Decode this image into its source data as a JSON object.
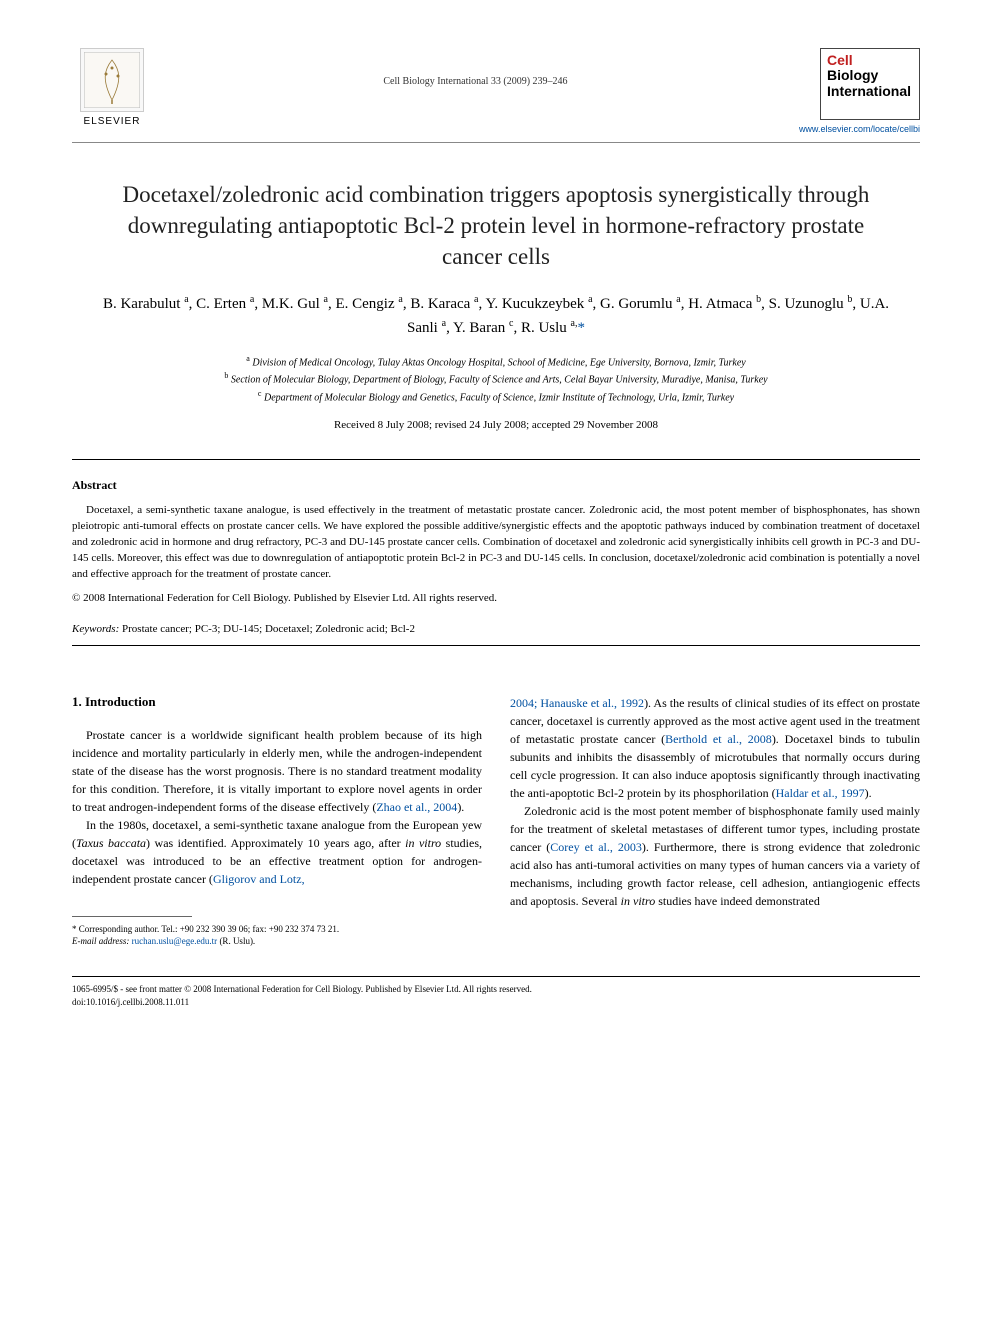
{
  "header": {
    "publisher_name": "ELSEVIER",
    "journal_ref": "Cell Biology International 33 (2009) 239–246",
    "journal_name_line1": "Cell",
    "journal_name_line2": "Biology",
    "journal_name_line3": "International",
    "journal_url": "www.elsevier.com/locate/cellbi"
  },
  "title": "Docetaxel/zoledronic acid combination triggers apoptosis synergistically through downregulating antiapoptotic Bcl-2 protein level in hormone-refractory prostate cancer cells",
  "authors_html": "B. Karabulut <sup>a</sup>, C. Erten <sup>a</sup>, M.K. Gul <sup>a</sup>, E. Cengiz <sup>a</sup>, B. Karaca <sup>a</sup>, Y. Kucukzeybek <sup>a</sup>, G. Gorumlu <sup>a</sup>, H. Atmaca <sup>b</sup>, S. Uzunoglu <sup>b</sup>, U.A. Sanli <sup>a</sup>, Y. Baran <sup>c</sup>, R. Uslu <sup>a,</sup><span class=\"star\">*</span>",
  "affiliations": [
    {
      "sup": "a",
      "text": "Division of Medical Oncology, Tulay Aktas Oncology Hospital, School of Medicine, Ege University, Bornova, Izmir, Turkey"
    },
    {
      "sup": "b",
      "text": "Section of Molecular Biology, Department of Biology, Faculty of Science and Arts, Celal Bayar University, Muradiye, Manisa, Turkey"
    },
    {
      "sup": "c",
      "text": "Department of Molecular Biology and Genetics, Faculty of Science, Izmir Institute of Technology, Urla, Izmir, Turkey"
    }
  ],
  "dates": "Received 8 July 2008; revised 24 July 2008; accepted 29 November 2008",
  "abstract": {
    "heading": "Abstract",
    "text": "Docetaxel, a semi-synthetic taxane analogue, is used effectively in the treatment of metastatic prostate cancer. Zoledronic acid, the most potent member of bisphosphonates, has shown pleiotropic anti-tumoral effects on prostate cancer cells. We have explored the possible additive/synergistic effects and the apoptotic pathways induced by combination treatment of docetaxel and zoledronic acid in hormone and drug refractory, PC-3 and DU-145 prostate cancer cells. Combination of docetaxel and zoledronic acid synergistically inhibits cell growth in PC-3 and DU-145 cells. Moreover, this effect was due to downregulation of antiapoptotic protein Bcl-2 in PC-3 and DU-145 cells. In conclusion, docetaxel/zoledronic acid combination is potentially a novel and effective approach for the treatment of prostate cancer.",
    "copyright": "© 2008 International Federation for Cell Biology. Published by Elsevier Ltd. All rights reserved."
  },
  "keywords": {
    "label": "Keywords:",
    "text": "Prostate cancer; PC-3; DU-145; Docetaxel; Zoledronic acid; Bcl-2"
  },
  "intro": {
    "heading": "1. Introduction",
    "p1": "Prostate cancer is a worldwide significant health problem because of its high incidence and mortality particularly in elderly men, while the androgen-independent state of the disease has the worst prognosis. There is no standard treatment modality for this condition. Therefore, it is vitally important to explore novel agents in order to treat androgen-independent forms of the disease effectively (",
    "p1_cite": "Zhao et al., 2004",
    "p1_tail": ").",
    "p2_a": "In the 1980s, docetaxel, a semi-synthetic taxane analogue from the European yew (",
    "p2_ital": "Taxus baccata",
    "p2_b": ") was identified. Approximately 10 years ago, after ",
    "p2_ital2": "in vitro",
    "p2_c": " studies, docetaxel was introduced to be an effective treatment option for androgen-independent prostate cancer (",
    "p2_cite1": "Gligorov and Lotz,",
    "col2_p1_cite": "2004; Hanauske et al., 1992",
    "col2_p1_a": "). As the results of clinical studies of its effect on prostate cancer, docetaxel is currently approved as the most active agent used in the treatment of metastatic prostate cancer (",
    "col2_p1_cite2": "Berthold et al., 2008",
    "col2_p1_b": "). Docetaxel binds to tubulin subunits and inhibits the disassembly of microtubules that normally occurs during cell cycle progression. It can also induce apoptosis significantly through inactivating the anti-apoptotic Bcl-2 protein by its phosphorilation (",
    "col2_p1_cite3": "Haldar et al., 1997",
    "col2_p1_c": ").",
    "col2_p2_a": "Zoledronic acid is the most potent member of bisphosphonate family used mainly for the treatment of skeletal metastases of different tumor types, including prostate cancer (",
    "col2_p2_cite": "Corey et al., 2003",
    "col2_p2_b": "). Furthermore, there is strong evidence that zoledronic acid also has anti-tumoral activities on many types of human cancers via a variety of mechanisms, including growth factor release, cell adhesion, antiangiogenic effects and apoptosis. Several ",
    "col2_p2_ital": "in vitro",
    "col2_p2_c": " studies have indeed demonstrated"
  },
  "footnote": {
    "corresponding": "* Corresponding author. Tel.: +90 232 390 39 06; fax: +90 232 374 73 21.",
    "email_label": "E-mail address:",
    "email": "ruchan.uslu@ege.edu.tr",
    "email_tail": "(R. Uslu)."
  },
  "footer": {
    "line1": "1065-6995/$ - see front matter © 2008 International Federation for Cell Biology. Published by Elsevier Ltd. All rights reserved.",
    "line2": "doi:10.1016/j.cellbi.2008.11.011"
  },
  "colors": {
    "link": "#0050a0",
    "accent_red": "#c02020",
    "text": "#000000",
    "bg": "#ffffff"
  }
}
